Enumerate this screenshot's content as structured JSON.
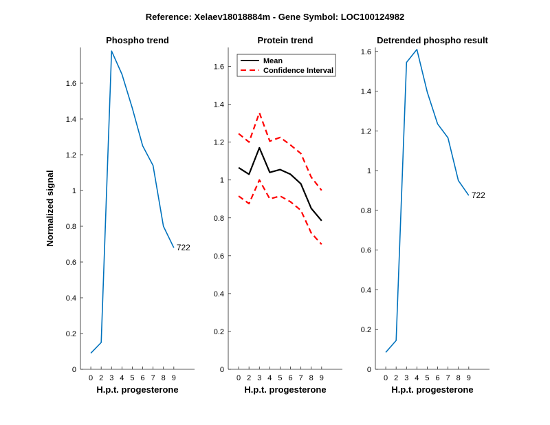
{
  "figure": {
    "suptitle": "Reference:  Xelaev18018884m - Gene Symbol:  LOC100124982"
  },
  "chart_data": [
    {
      "type": "line",
      "title": "Phospho trend",
      "xlabel": "H.p.t. progesterone",
      "ylabel": "Normalized signal",
      "xlim": [
        -1,
        10
      ],
      "ylim": [
        0,
        1.8
      ],
      "xticks": [
        0,
        2,
        3,
        4,
        5,
        6,
        7,
        8,
        9
      ],
      "yticks": [
        0,
        0.2,
        0.4,
        0.6,
        0.8,
        1,
        1.2,
        1.4,
        1.6
      ],
      "ytick_labels": [
        "0",
        "0.2",
        "0.4",
        "0.6",
        "0.8",
        "1",
        "1.2",
        "1.4",
        "1.6"
      ],
      "x": [
        0,
        1,
        2,
        3,
        4,
        5,
        6,
        7,
        8
      ],
      "series": [
        {
          "values": [
            0.09,
            0.15,
            1.78,
            1.65,
            1.46,
            1.25,
            1.14,
            0.8,
            0.68
          ],
          "color": "#0072BD",
          "style": "solid"
        }
      ],
      "annotation": {
        "text": "722",
        "x": 8,
        "y": 0.68
      }
    },
    {
      "type": "line",
      "title": "Protein trend",
      "xlabel": "H.p.t. progesterone",
      "ylabel": "",
      "xlim": [
        -1,
        10
      ],
      "ylim": [
        0,
        1.7
      ],
      "xticks": [
        0,
        2,
        3,
        4,
        5,
        6,
        7,
        8,
        9
      ],
      "yticks": [
        0,
        0.2,
        0.4,
        0.6,
        0.8,
        1,
        1.2,
        1.4,
        1.6
      ],
      "ytick_labels": [
        "0",
        "0.2",
        "0.4",
        "0.6",
        "0.8",
        "1",
        "1.2",
        "1.4",
        "1.6"
      ],
      "x": [
        0,
        1,
        2,
        3,
        4,
        5,
        6,
        7,
        8
      ],
      "legend_position": "top-left",
      "series": [
        {
          "name": "Mean",
          "values": [
            1.065,
            1.03,
            1.17,
            1.04,
            1.055,
            1.03,
            0.98,
            0.85,
            0.785
          ],
          "color": "#000000",
          "style": "solid",
          "show_in_legend": true
        },
        {
          "name": "Confidence Interval",
          "values": [
            1.245,
            1.2,
            1.355,
            1.205,
            1.225,
            1.185,
            1.14,
            1.015,
            0.945
          ],
          "color": "#FF0000",
          "style": "dashed",
          "show_in_legend": true
        },
        {
          "name": "Confidence Interval",
          "values": [
            0.915,
            0.875,
            1.0,
            0.9,
            0.915,
            0.885,
            0.84,
            0.72,
            0.66
          ],
          "color": "#FF0000",
          "style": "dashed",
          "show_in_legend": false
        }
      ]
    },
    {
      "type": "line",
      "title": "Detrended phospho result",
      "xlabel": "H.p.t. progesterone",
      "ylabel": "",
      "xlim": [
        -1,
        10
      ],
      "ylim": [
        0,
        1.62
      ],
      "xticks": [
        0,
        2,
        3,
        4,
        5,
        6,
        7,
        8,
        9
      ],
      "yticks": [
        0,
        0.2,
        0.4,
        0.6,
        0.8,
        1,
        1.2,
        1.4,
        1.6
      ],
      "ytick_labels": [
        "0",
        "0.2",
        "0.4",
        "0.6",
        "0.8",
        "1",
        "1.2",
        "1.4",
        "1.6"
      ],
      "x": [
        0,
        1,
        2,
        3,
        4,
        5,
        6,
        7,
        8
      ],
      "series": [
        {
          "values": [
            0.085,
            0.145,
            1.545,
            1.61,
            1.395,
            1.235,
            1.165,
            0.95,
            0.875
          ],
          "color": "#0072BD",
          "style": "solid"
        }
      ],
      "annotation": {
        "text": "722",
        "x": 8,
        "y": 0.875
      }
    }
  ]
}
